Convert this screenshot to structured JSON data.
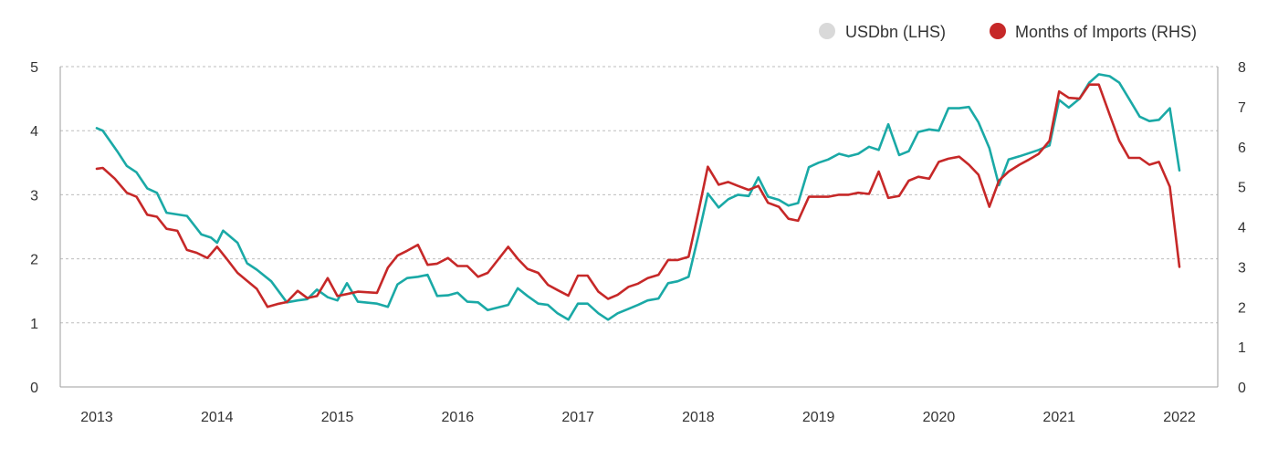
{
  "chart_data": {
    "type": "line",
    "x_ticks": [
      "2013",
      "2014",
      "2015",
      "2016",
      "2017",
      "2018",
      "2019",
      "2020",
      "2021",
      "2022"
    ],
    "y_left_ticks": [
      "0",
      "1",
      "2",
      "3",
      "4",
      "5"
    ],
    "y_right_ticks": [
      "0",
      "1",
      "2",
      "3",
      "4",
      "5",
      "6",
      "7",
      "8"
    ],
    "ylim_left": [
      0,
      5
    ],
    "ylim_right": [
      0,
      8
    ],
    "xlim": [
      2013,
      2022
    ],
    "grid": "horizontal dashed",
    "legend_position": "top-right",
    "series": [
      {
        "name": "USDbn (LHS)",
        "axis": "left",
        "color": "#1aa9a6",
        "legend_marker_color": "#d9d9d9",
        "x": [
          2013.0,
          2013.05,
          2013.17,
          2013.25,
          2013.33,
          2013.42,
          2013.5,
          2013.58,
          2013.75,
          2013.87,
          2013.95,
          2014.0,
          2014.05,
          2014.17,
          2014.25,
          2014.33,
          2014.45,
          2014.58,
          2014.67,
          2014.75,
          2014.83,
          2014.92,
          2015.0,
          2015.08,
          2015.17,
          2015.33,
          2015.42,
          2015.5,
          2015.58,
          2015.67,
          2015.75,
          2015.83,
          2015.92,
          2016.0,
          2016.08,
          2016.17,
          2016.25,
          2016.42,
          2016.5,
          2016.58,
          2016.67,
          2016.75,
          2016.83,
          2016.92,
          2017.0,
          2017.08,
          2017.17,
          2017.25,
          2017.33,
          2017.42,
          2017.5,
          2017.58,
          2017.67,
          2017.75,
          2017.83,
          2017.92,
          2018.0,
          2018.08,
          2018.17,
          2018.25,
          2018.33,
          2018.42,
          2018.5,
          2018.58,
          2018.67,
          2018.75,
          2018.83,
          2018.92,
          2019.0,
          2019.08,
          2019.17,
          2019.25,
          2019.33,
          2019.42,
          2019.5,
          2019.58,
          2019.67,
          2019.75,
          2019.83,
          2019.92,
          2020.0,
          2020.08,
          2020.17,
          2020.25,
          2020.33,
          2020.42,
          2020.5,
          2020.58,
          2020.67,
          2020.75,
          2020.83,
          2020.92,
          2021.0,
          2021.08,
          2021.17,
          2021.25,
          2021.33,
          2021.42,
          2021.5,
          2021.58,
          2021.67,
          2021.75,
          2021.83,
          2021.92,
          2022.0
        ],
        "values": [
          4.04,
          4.0,
          3.68,
          3.45,
          3.35,
          3.1,
          3.03,
          2.72,
          2.67,
          2.38,
          2.33,
          2.25,
          2.44,
          2.25,
          1.93,
          1.83,
          1.65,
          1.32,
          1.35,
          1.37,
          1.52,
          1.4,
          1.35,
          1.62,
          1.33,
          1.3,
          1.25,
          1.6,
          1.7,
          1.72,
          1.75,
          1.42,
          1.43,
          1.47,
          1.33,
          1.32,
          1.2,
          1.28,
          1.54,
          1.42,
          1.3,
          1.28,
          1.15,
          1.05,
          1.3,
          1.3,
          1.15,
          1.05,
          1.15,
          1.22,
          1.28,
          1.35,
          1.38,
          1.62,
          1.65,
          1.72,
          2.35,
          3.02,
          2.8,
          2.93,
          3.0,
          2.98,
          3.27,
          2.97,
          2.92,
          2.83,
          2.87,
          3.43,
          3.5,
          3.55,
          3.64,
          3.6,
          3.64,
          3.75,
          3.7,
          4.1,
          3.62,
          3.68,
          3.98,
          4.02,
          4.0,
          4.35,
          4.35,
          4.37,
          4.13,
          3.73,
          3.15,
          3.55,
          3.6,
          3.65,
          3.7,
          3.77,
          4.48,
          4.36,
          4.5,
          4.75,
          4.88,
          4.85,
          4.75,
          4.5,
          4.22,
          4.15,
          4.17,
          4.35,
          3.38
        ]
      },
      {
        "name": "Months of Imports (RHS)",
        "axis": "right",
        "color": "#c62828",
        "legend_marker_color": "#c62828",
        "x": [
          2013.0,
          2013.05,
          2013.15,
          2013.25,
          2013.33,
          2013.42,
          2013.5,
          2013.58,
          2013.67,
          2013.75,
          2013.83,
          2013.92,
          2014.0,
          2014.08,
          2014.17,
          2014.25,
          2014.33,
          2014.42,
          2014.5,
          2014.58,
          2014.67,
          2014.75,
          2014.83,
          2014.92,
          2015.0,
          2015.08,
          2015.17,
          2015.33,
          2015.42,
          2015.5,
          2015.58,
          2015.67,
          2015.75,
          2015.83,
          2015.92,
          2016.0,
          2016.08,
          2016.17,
          2016.25,
          2016.42,
          2016.5,
          2016.58,
          2016.67,
          2016.75,
          2016.83,
          2016.92,
          2017.0,
          2017.08,
          2017.17,
          2017.25,
          2017.33,
          2017.42,
          2017.5,
          2017.58,
          2017.67,
          2017.75,
          2017.83,
          2017.92,
          2018.0,
          2018.08,
          2018.17,
          2018.25,
          2018.33,
          2018.42,
          2018.5,
          2018.58,
          2018.67,
          2018.75,
          2018.83,
          2018.92,
          2019.0,
          2019.08,
          2019.17,
          2019.25,
          2019.33,
          2019.42,
          2019.5,
          2019.58,
          2019.67,
          2019.75,
          2019.83,
          2019.92,
          2020.0,
          2020.08,
          2020.17,
          2020.25,
          2020.33,
          2020.42,
          2020.5,
          2020.58,
          2020.67,
          2020.75,
          2020.83,
          2020.92,
          2021.0,
          2021.08,
          2021.17,
          2021.25,
          2021.33,
          2021.42,
          2021.5,
          2021.58,
          2021.67,
          2021.75,
          2021.83,
          2021.92,
          2022.0
        ],
        "values": [
          5.45,
          5.47,
          5.2,
          4.85,
          4.75,
          4.3,
          4.25,
          3.95,
          3.9,
          3.42,
          3.35,
          3.22,
          3.5,
          3.2,
          2.85,
          2.65,
          2.45,
          2.0,
          2.07,
          2.12,
          2.4,
          2.22,
          2.27,
          2.72,
          2.27,
          2.32,
          2.38,
          2.35,
          2.98,
          3.28,
          3.4,
          3.55,
          3.05,
          3.08,
          3.22,
          3.02,
          3.02,
          2.75,
          2.85,
          3.5,
          3.2,
          2.95,
          2.85,
          2.55,
          2.42,
          2.28,
          2.78,
          2.78,
          2.38,
          2.2,
          2.3,
          2.5,
          2.58,
          2.72,
          2.8,
          3.17,
          3.17,
          3.25,
          4.35,
          5.5,
          5.05,
          5.12,
          5.02,
          4.92,
          5.02,
          4.6,
          4.5,
          4.2,
          4.15,
          4.75,
          4.75,
          4.75,
          4.8,
          4.8,
          4.85,
          4.82,
          5.38,
          4.72,
          4.77,
          5.15,
          5.25,
          5.2,
          5.62,
          5.7,
          5.75,
          5.55,
          5.3,
          4.5,
          5.15,
          5.38,
          5.55,
          5.68,
          5.82,
          6.15,
          7.38,
          7.22,
          7.2,
          7.55,
          7.55,
          6.8,
          6.15,
          5.72,
          5.72,
          5.55,
          5.62,
          5.0,
          3.0
        ]
      }
    ]
  }
}
